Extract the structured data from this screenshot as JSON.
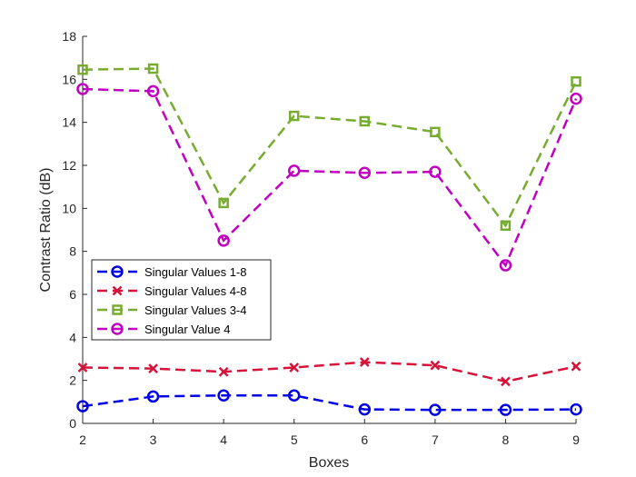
{
  "chart_data": {
    "type": "line",
    "title": "",
    "xlabel": "Boxes",
    "ylabel": "Contrast Ratio (dB)",
    "x": [
      2,
      3,
      4,
      5,
      6,
      7,
      8,
      9
    ],
    "xlim": [
      2,
      9
    ],
    "ylim": [
      0,
      18
    ],
    "xticks": [
      "2",
      "3",
      "4",
      "5",
      "6",
      "7",
      "8",
      "9"
    ],
    "yticks": [
      "0",
      "2",
      "4",
      "6",
      "8",
      "10",
      "12",
      "14",
      "16",
      "18"
    ],
    "grid": false,
    "legend_position": "lower-left",
    "series": [
      {
        "name": "Singular Values 1-8",
        "color": "#0000e6",
        "marker": "circle",
        "values": [
          0.8,
          1.25,
          1.3,
          1.3,
          0.65,
          0.63,
          0.63,
          0.65
        ]
      },
      {
        "name": "Singular Values 4-8",
        "color": "#d6133a",
        "marker": "x",
        "values": [
          2.6,
          2.55,
          2.4,
          2.6,
          2.85,
          2.7,
          1.95,
          2.65
        ]
      },
      {
        "name": "Singular Values 3-4",
        "color": "#77ac30",
        "marker": "square",
        "values": [
          16.45,
          16.5,
          10.25,
          14.3,
          14.05,
          13.55,
          9.2,
          15.9
        ]
      },
      {
        "name": "Singular Value 4",
        "color": "#c100c1",
        "marker": "circle",
        "values": [
          15.55,
          15.45,
          8.5,
          11.75,
          11.65,
          11.7,
          7.35,
          15.1
        ]
      }
    ]
  }
}
